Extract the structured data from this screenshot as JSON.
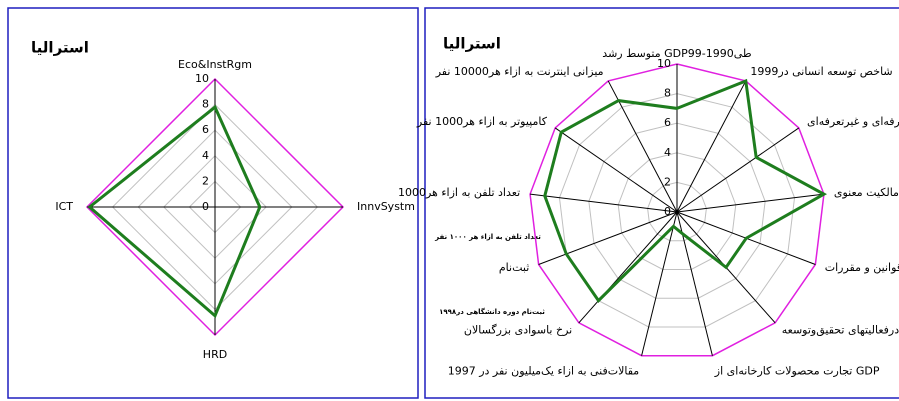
{
  "chart_data": [
    {
      "type": "radar",
      "title": "استراليا",
      "categories": [
        "Eco&InstRgm",
        "InnvSystm",
        "HRD",
        "ICT"
      ],
      "series": [
        {
          "name": null,
          "color": "#1e7d1e",
          "values": [
            7.8,
            3.5,
            8.5,
            9.8
          ]
        }
      ],
      "ylim": [
        0,
        10
      ],
      "yticks": [
        0,
        2,
        4,
        6,
        8,
        10
      ],
      "grid": true,
      "outer_color": "#e020e0"
    },
    {
      "type": "radar",
      "title": "استراليا",
      "categories": [
        "متوسط رشد GDPطی1990-99",
        "شاخص توسعه انسانی در1999",
        "موانع تعرفه‌ای و غیرتعرفه‌ای",
        "حقوق مالکیت معنوی",
        "قوانین و مقررات",
        "ن‌درفعالیتهای تحقیق‌وتوسعه",
        "تجارت محصولات کارخانه‌ای از GDP",
        "مقالات‌فنی به ازاء یک‌میلیون نفر در 1997",
        "نرخ باسوادی بزرگسالان",
        "ثبت‌نام",
        "تعداد تلفن به ازاء هر1000",
        "کامپیوتر به ازاء هر1000 نفر",
        "میزانی اینترنت به ازاء هر10000 نفر"
      ],
      "series": [
        {
          "name": null,
          "color": "#1e7d1e",
          "values": [
            7,
            10,
            6.5,
            10,
            5,
            5,
            1.5,
            1,
            8,
            8,
            9,
            9.5,
            8.5
          ]
        }
      ],
      "ylim": [
        0,
        10
      ],
      "yticks": [
        0,
        2,
        4,
        6,
        8,
        10
      ],
      "grid": true,
      "outer_color": "#e020e0",
      "annotations": [
        "تعداد تلفن به ازاء هر ۱۰۰۰ نفر",
        "ثبت‌نام دوره دانشگاهی در۱۹۹۸"
      ]
    }
  ]
}
